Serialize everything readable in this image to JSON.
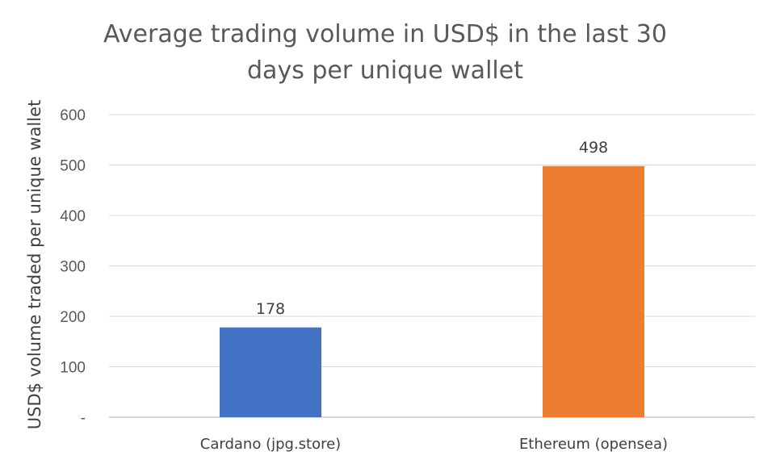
{
  "chart_data": {
    "type": "bar",
    "title_lines": [
      "Average trading volume in USD$ in the last 30",
      "days per unique wallet"
    ],
    "categories": [
      "Cardano (jpg.store)",
      "Ethereum (opensea)"
    ],
    "values": [
      178,
      498
    ],
    "data_labels": [
      "178",
      "498"
    ],
    "colors": [
      "#4472c4",
      "#ed7d31"
    ],
    "xlabel": "",
    "ylabel": "USD$ volume traded per unique wallet",
    "ylim": [
      0,
      600
    ],
    "yticks": [
      0,
      100,
      200,
      300,
      400,
      500,
      600
    ],
    "ytick_labels": [
      "-",
      "100",
      "200",
      "300",
      "400",
      "500",
      "600"
    ],
    "grid": true,
    "legend": "none"
  }
}
